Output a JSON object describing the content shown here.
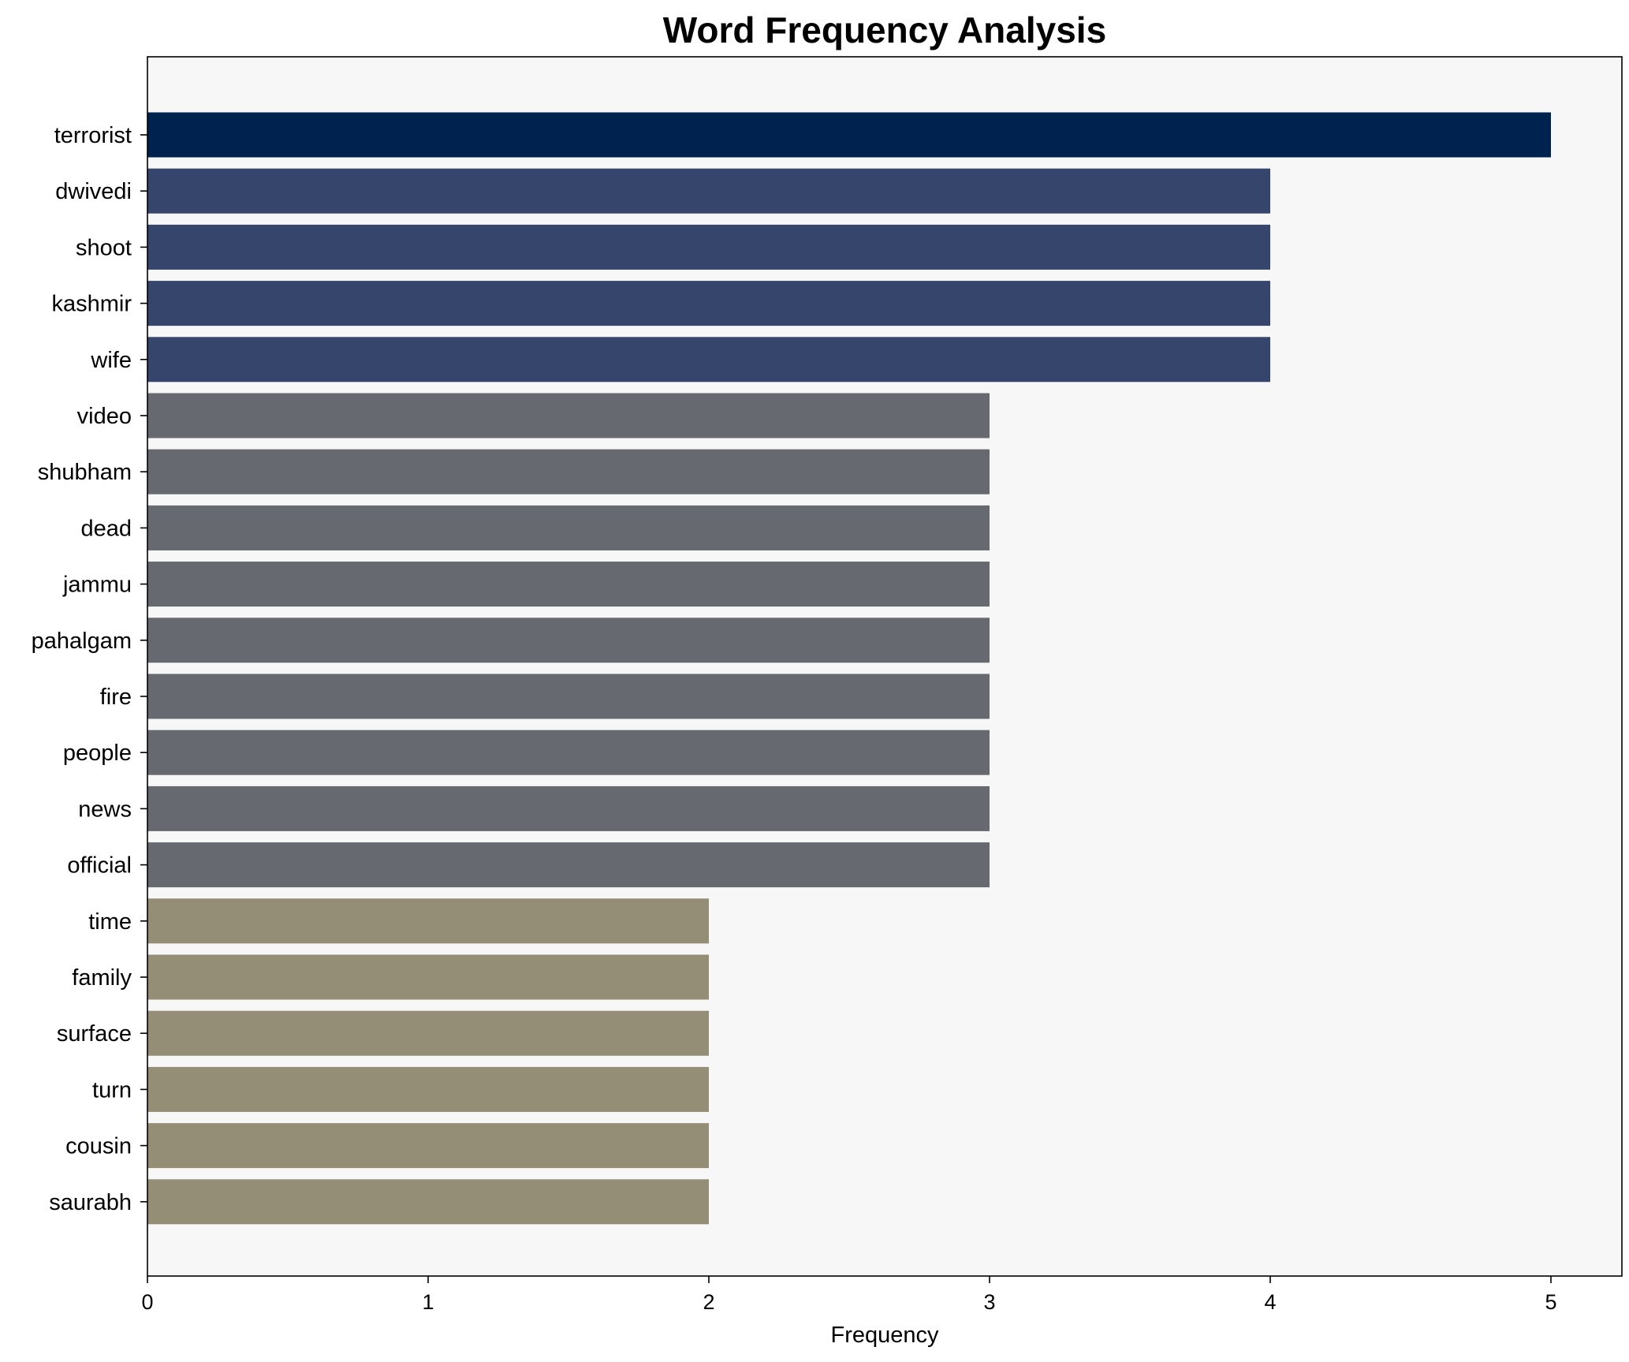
{
  "chart_data": {
    "type": "bar",
    "orientation": "horizontal",
    "title": "Word Frequency Analysis",
    "xlabel": "Frequency",
    "ylabel": "",
    "xlim": [
      0,
      5.25
    ],
    "xticks": [
      0,
      1,
      2,
      3,
      4,
      5
    ],
    "grid": false,
    "legend": "none",
    "categories": [
      "terrorist",
      "dwivedi",
      "shoot",
      "kashmir",
      "wife",
      "video",
      "shubham",
      "dead",
      "jammu",
      "pahalgam",
      "fire",
      "people",
      "news",
      "official",
      "time",
      "family",
      "surface",
      "turn",
      "cousin",
      "saurabh"
    ],
    "values": [
      5,
      4,
      4,
      4,
      4,
      3,
      3,
      3,
      3,
      3,
      3,
      3,
      3,
      3,
      2,
      2,
      2,
      2,
      2,
      2
    ],
    "colors": {
      "5": "#00224e",
      "4": "#35456c",
      "3": "#666970",
      "2": "#948e77"
    },
    "plot_background": "#f7f7f7"
  }
}
